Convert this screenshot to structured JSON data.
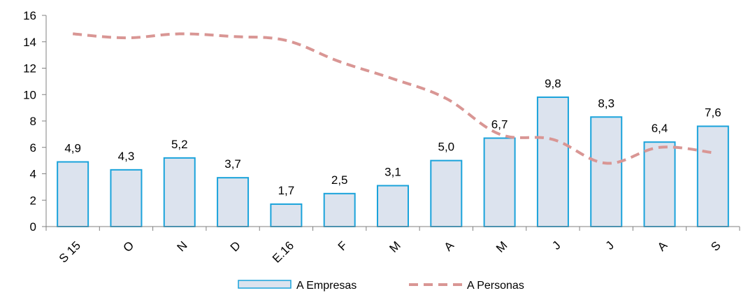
{
  "chart_data": {
    "type": "bar",
    "categories": [
      "S 15",
      "O",
      "N",
      "D",
      "E.16",
      "F",
      "M",
      "A",
      "M",
      "J",
      "J",
      "A",
      "S"
    ],
    "series": [
      {
        "name": "A Empresas",
        "type": "bar",
        "values": [
          4.9,
          4.3,
          5.2,
          3.7,
          1.7,
          2.5,
          3.1,
          5.0,
          6.7,
          9.8,
          8.3,
          6.4,
          7.6
        ],
        "labels": [
          "4,9",
          "4,3",
          "5,2",
          "3,7",
          "1,7",
          "2,5",
          "3,1",
          "5,0",
          "6,7",
          "9,8",
          "8,3",
          "6,4",
          "7,6"
        ],
        "fill": "#dce3ee",
        "stroke": "#1aa3db"
      },
      {
        "name": "A Personas",
        "type": "line",
        "style": "dashed",
        "values": [
          14.6,
          14.3,
          14.6,
          14.4,
          14.1,
          12.5,
          11.2,
          9.7,
          7.0,
          6.6,
          4.8,
          6.0,
          5.6
        ],
        "stroke": "#d99694"
      }
    ],
    "ylim": [
      0,
      16
    ],
    "yticks": [
      0,
      2,
      4,
      6,
      8,
      10,
      12,
      14,
      16
    ],
    "grid": false,
    "legend_position": "bottom"
  }
}
